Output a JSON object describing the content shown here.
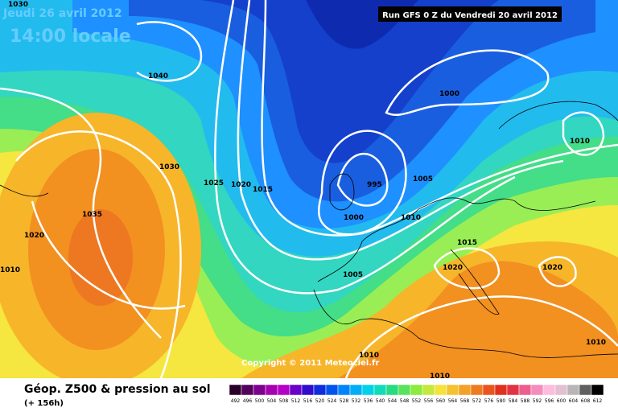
{
  "header": {
    "date": "Jeudi 26 avril 2012",
    "time": "14:00 locale",
    "run": "Run GFS 0 Z du Vendredi 20 avril 2012"
  },
  "isobar_labels": [
    "1030",
    "1040",
    "1030",
    "1025",
    "1020",
    "1015",
    "995",
    "1000",
    "1005",
    "1010",
    "1000",
    "1010",
    "1035",
    "1020",
    "1010",
    "1015",
    "1020",
    "1020",
    "1005",
    "1010",
    "1010",
    "1010"
  ],
  "copyright": "Copyright © 2011 Meteociel.fr",
  "footer": {
    "title": "Géop. Z500 & pression au sol",
    "subtitle": "(+ 156h)"
  },
  "legend": {
    "levels": [
      492,
      496,
      500,
      504,
      508,
      512,
      516,
      520,
      524,
      528,
      532,
      536,
      540,
      544,
      548,
      552,
      556,
      560,
      564,
      568,
      572,
      576,
      580,
      584,
      588,
      592,
      596,
      600,
      604,
      608,
      612
    ]
  }
}
